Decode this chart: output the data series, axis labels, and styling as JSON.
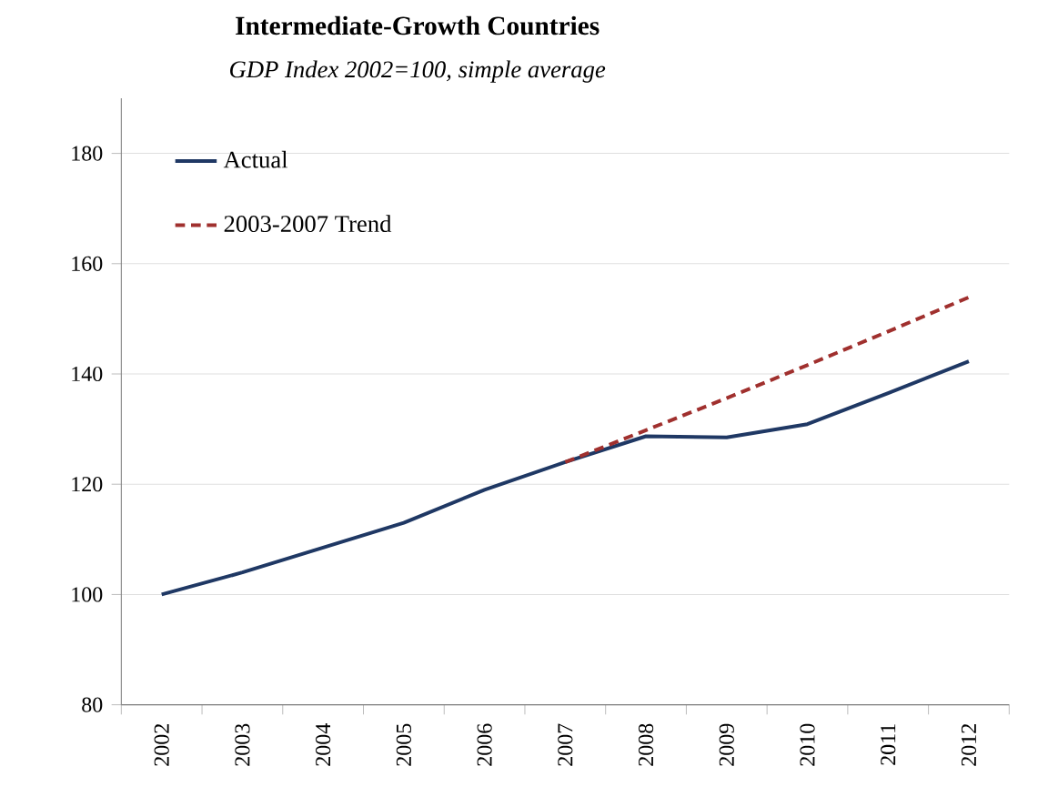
{
  "chart_data": {
    "type": "line",
    "title": "Intermediate-Growth Countries",
    "subtitle": "GDP Index 2002=100,  simple average",
    "categories": [
      "2002",
      "2003",
      "2004",
      "2005",
      "2006",
      "2007",
      "2008",
      "2009",
      "2010",
      "2011",
      "2012"
    ],
    "series": [
      {
        "name": "Actual",
        "color": "#1f3864",
        "line_style": "solid",
        "values": [
          100,
          104,
          108.5,
          113,
          119,
          124,
          128.7,
          128.5,
          130.9,
          136.5,
          142.3
        ]
      },
      {
        "name": "2003-2007 Trend",
        "color": "#a0302e",
        "line_style": "dashed",
        "values": [
          null,
          null,
          null,
          null,
          null,
          124,
          129.8,
          135.6,
          141.6,
          147.7,
          153.9
        ]
      }
    ],
    "ylim": [
      80,
      190
    ],
    "yticks": [
      80,
      100,
      120,
      140,
      160,
      180
    ],
    "grid": "y",
    "legend": "top left",
    "marker": "none"
  }
}
